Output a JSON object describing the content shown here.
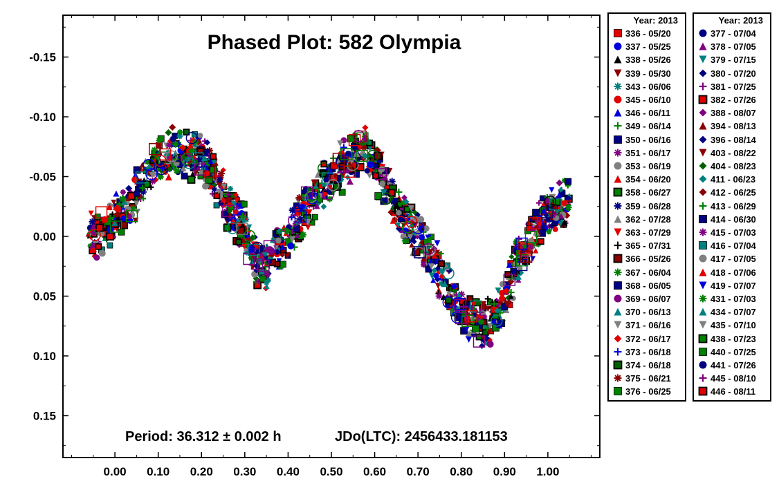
{
  "chart_data": {
    "type": "scatter",
    "title": "Phased Plot: 582 Olympia",
    "annotations": {
      "period": "Period: 36.312 ± 0.002 h",
      "epoch": "JDo(LTC): 2456433.181153"
    },
    "xlim": [
      -0.12,
      1.12
    ],
    "ylim": [
      0.185,
      -0.185
    ],
    "y_inverted": true,
    "x_ticks": [
      "0.00",
      "0.10",
      "0.20",
      "0.30",
      "0.40",
      "0.50",
      "0.60",
      "0.70",
      "0.80",
      "0.90",
      "1.00"
    ],
    "x_tick_values": [
      0,
      0.1,
      0.2,
      0.3,
      0.4,
      0.5,
      0.6,
      0.7,
      0.8,
      0.9,
      1.0
    ],
    "y_ticks": [
      "-0.15",
      "-0.10",
      "-0.05",
      "0.00",
      "0.05",
      "0.10",
      "0.15"
    ],
    "y_tick_values": [
      -0.15,
      -0.1,
      -0.05,
      0.0,
      0.05,
      0.1,
      0.15
    ],
    "grid": false,
    "legend_placement": "right",
    "legend_title": "Year: 2013",
    "curve_model": {
      "description_points": [
        [
          -0.05,
          0.0
        ],
        [
          0.0,
          -0.015
        ],
        [
          0.05,
          -0.035
        ],
        [
          0.1,
          -0.065
        ],
        [
          0.15,
          -0.072
        ],
        [
          0.2,
          -0.065
        ],
        [
          0.25,
          -0.035
        ],
        [
          0.3,
          -0.005
        ],
        [
          0.33,
          0.025
        ],
        [
          0.35,
          0.025
        ],
        [
          0.4,
          0.0
        ],
        [
          0.45,
          -0.03
        ],
        [
          0.5,
          -0.05
        ],
        [
          0.55,
          -0.065
        ],
        [
          0.58,
          -0.075
        ],
        [
          0.62,
          -0.045
        ],
        [
          0.66,
          -0.02
        ],
        [
          0.7,
          0.0
        ],
        [
          0.75,
          0.03
        ],
        [
          0.8,
          0.065
        ],
        [
          0.85,
          0.075
        ],
        [
          0.88,
          0.07
        ],
        [
          0.92,
          0.03
        ],
        [
          0.96,
          0.0
        ],
        [
          1.0,
          -0.02
        ],
        [
          1.05,
          -0.03
        ]
      ]
    },
    "series": [
      {
        "name": "336 - 05/20",
        "marker": "square-hollow",
        "color": "#e00000"
      },
      {
        "name": "337 - 05/25",
        "marker": "circle",
        "color": "#0000dd"
      },
      {
        "name": "338 - 05/26",
        "marker": "triangle",
        "color": "#000000"
      },
      {
        "name": "339 - 05/30",
        "marker": "triangle-down",
        "color": "#8b0000"
      },
      {
        "name": "343 - 06/06",
        "marker": "asterisk",
        "color": "#008080"
      },
      {
        "name": "345 - 06/10",
        "marker": "circle",
        "color": "#e00000"
      },
      {
        "name": "346 - 06/11",
        "marker": "triangle",
        "color": "#0000dd"
      },
      {
        "name": "349 - 06/14",
        "marker": "plus",
        "color": "#008000"
      },
      {
        "name": "350 - 06/16",
        "marker": "square",
        "color": "#000080"
      },
      {
        "name": "351 - 06/17",
        "marker": "asterisk",
        "color": "#800080"
      },
      {
        "name": "353 - 06/19",
        "marker": "circle",
        "color": "#808080"
      },
      {
        "name": "354 - 06/20",
        "marker": "triangle",
        "color": "#e00000"
      },
      {
        "name": "358 - 06/27",
        "marker": "square-black",
        "color": "#008000"
      },
      {
        "name": "359 - 06/28",
        "marker": "asterisk",
        "color": "#000080"
      },
      {
        "name": "362 - 07/28",
        "marker": "triangle",
        "color": "#808080"
      },
      {
        "name": "363 - 07/29",
        "marker": "triangle-down",
        "color": "#e00000"
      },
      {
        "name": "365 - 07/31",
        "marker": "plus",
        "color": "#000000"
      },
      {
        "name": "366 - 05/26",
        "marker": "square-black",
        "color": "#8b0000"
      },
      {
        "name": "367 - 06/04",
        "marker": "asterisk",
        "color": "#008000"
      },
      {
        "name": "368 - 06/05",
        "marker": "square",
        "color": "#000080"
      },
      {
        "name": "369 - 06/07",
        "marker": "circle",
        "color": "#800080"
      },
      {
        "name": "370 - 06/13",
        "marker": "triangle",
        "color": "#008080"
      },
      {
        "name": "371 - 06/16",
        "marker": "triangle-down",
        "color": "#808080"
      },
      {
        "name": "372 - 06/17",
        "marker": "diamond",
        "color": "#e00000"
      },
      {
        "name": "373 - 06/18",
        "marker": "plus",
        "color": "#0000dd"
      },
      {
        "name": "374 - 06/18",
        "marker": "square-black",
        "color": "#006000"
      },
      {
        "name": "375 - 06/21",
        "marker": "asterisk",
        "color": "#8b0000"
      },
      {
        "name": "376 - 06/25",
        "marker": "square",
        "color": "#008000"
      },
      {
        "name": "377 - 07/04",
        "marker": "circle",
        "color": "#000080"
      },
      {
        "name": "378 - 07/05",
        "marker": "triangle",
        "color": "#800080"
      },
      {
        "name": "379 - 07/15",
        "marker": "triangle-down",
        "color": "#008080"
      },
      {
        "name": "380 - 07/20",
        "marker": "diamond",
        "color": "#000080"
      },
      {
        "name": "381 - 07/25",
        "marker": "plus",
        "color": "#800080"
      },
      {
        "name": "382 - 07/26",
        "marker": "square-black",
        "color": "#e00000"
      },
      {
        "name": "388 - 08/07",
        "marker": "diamond",
        "color": "#800080"
      },
      {
        "name": "394 - 08/13",
        "marker": "triangle",
        "color": "#8b0000"
      },
      {
        "name": "396 - 08/14",
        "marker": "diamond",
        "color": "#000080"
      },
      {
        "name": "403 - 08/22",
        "marker": "triangle-down",
        "color": "#8b0000"
      },
      {
        "name": "404 - 08/23",
        "marker": "diamond",
        "color": "#006000"
      },
      {
        "name": "411 - 06/23",
        "marker": "diamond",
        "color": "#008080"
      },
      {
        "name": "412 - 06/25",
        "marker": "diamond",
        "color": "#8b0000"
      },
      {
        "name": "413 - 06/29",
        "marker": "plus",
        "color": "#008000"
      },
      {
        "name": "414 - 06/30",
        "marker": "square",
        "color": "#000080"
      },
      {
        "name": "415 - 07/03",
        "marker": "asterisk",
        "color": "#800080"
      },
      {
        "name": "416 - 07/04",
        "marker": "square",
        "color": "#008080"
      },
      {
        "name": "417 - 07/05",
        "marker": "circle",
        "color": "#808080"
      },
      {
        "name": "418 - 07/06",
        "marker": "triangle",
        "color": "#e00000"
      },
      {
        "name": "419 - 07/07",
        "marker": "triangle-down",
        "color": "#0000dd"
      },
      {
        "name": "431 - 07/03",
        "marker": "asterisk",
        "color": "#008000"
      },
      {
        "name": "434 - 07/07",
        "marker": "triangle",
        "color": "#008080"
      },
      {
        "name": "435 - 07/10",
        "marker": "triangle-down",
        "color": "#808080"
      },
      {
        "name": "438 - 07/23",
        "marker": "square-black",
        "color": "#008000"
      },
      {
        "name": "440 - 07/25",
        "marker": "square",
        "color": "#008000"
      },
      {
        "name": "441 - 07/26",
        "marker": "circle",
        "color": "#000080"
      },
      {
        "name": "445 - 08/10",
        "marker": "plus",
        "color": "#800080"
      },
      {
        "name": "446 - 08/11",
        "marker": "square-black",
        "color": "#e00000"
      }
    ]
  }
}
